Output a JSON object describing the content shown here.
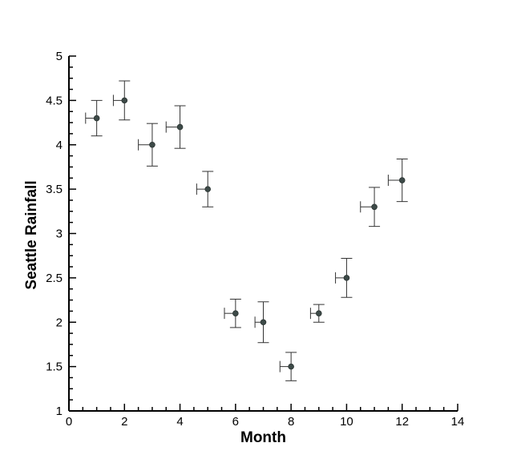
{
  "chart_data": {
    "type": "scatter",
    "title": "",
    "xlabel": "Month",
    "ylabel": "Seattle Rainfall",
    "xlim": [
      0,
      14
    ],
    "ylim": [
      1,
      5
    ],
    "xticks": [
      0,
      2,
      4,
      6,
      8,
      10,
      12,
      14
    ],
    "xtick_labels": [
      "0",
      "2",
      "4",
      "6",
      "8",
      "10",
      "12",
      "14"
    ],
    "yticks": [
      1,
      1.5,
      2,
      2.5,
      3,
      3.5,
      4,
      4.5,
      5
    ],
    "ytick_labels": [
      "1",
      "1.5",
      "2",
      "2.5",
      "3",
      "3.5",
      "4",
      "4.5",
      "5"
    ],
    "grid": false,
    "marker_color": "#3d4a48",
    "errorbar_color": "#333333",
    "series": [
      {
        "name": "Seattle Rainfall",
        "points": [
          {
            "x": 1,
            "y": 4.3,
            "xerr_low": 0.4,
            "xerr_high": 0.0,
            "yerr_low": 0.2,
            "yerr_high": 0.2
          },
          {
            "x": 2,
            "y": 4.5,
            "xerr_low": 0.4,
            "xerr_high": 0.0,
            "yerr_low": 0.22,
            "yerr_high": 0.22
          },
          {
            "x": 3,
            "y": 4.0,
            "xerr_low": 0.5,
            "xerr_high": 0.0,
            "yerr_low": 0.24,
            "yerr_high": 0.24
          },
          {
            "x": 4,
            "y": 4.2,
            "xerr_low": 0.5,
            "xerr_high": 0.0,
            "yerr_low": 0.24,
            "yerr_high": 0.24
          },
          {
            "x": 5,
            "y": 3.5,
            "xerr_low": 0.4,
            "xerr_high": 0.0,
            "yerr_low": 0.2,
            "yerr_high": 0.2
          },
          {
            "x": 6,
            "y": 2.1,
            "xerr_low": 0.4,
            "xerr_high": 0.0,
            "yerr_low": 0.16,
            "yerr_high": 0.16
          },
          {
            "x": 7,
            "y": 2.0,
            "xerr_low": 0.3,
            "xerr_high": 0.0,
            "yerr_low": 0.23,
            "yerr_high": 0.23
          },
          {
            "x": 8,
            "y": 1.5,
            "xerr_low": 0.4,
            "xerr_high": 0.0,
            "yerr_low": 0.16,
            "yerr_high": 0.16
          },
          {
            "x": 9,
            "y": 2.1,
            "xerr_low": 0.3,
            "xerr_high": 0.0,
            "yerr_low": 0.1,
            "yerr_high": 0.1
          },
          {
            "x": 10,
            "y": 2.5,
            "xerr_low": 0.4,
            "xerr_high": 0.0,
            "yerr_low": 0.22,
            "yerr_high": 0.22
          },
          {
            "x": 11,
            "y": 3.3,
            "xerr_low": 0.5,
            "xerr_high": 0.0,
            "yerr_low": 0.22,
            "yerr_high": 0.22
          },
          {
            "x": 12,
            "y": 3.6,
            "xerr_low": 0.5,
            "xerr_high": 0.0,
            "yerr_low": 0.24,
            "yerr_high": 0.24
          }
        ]
      }
    ]
  }
}
